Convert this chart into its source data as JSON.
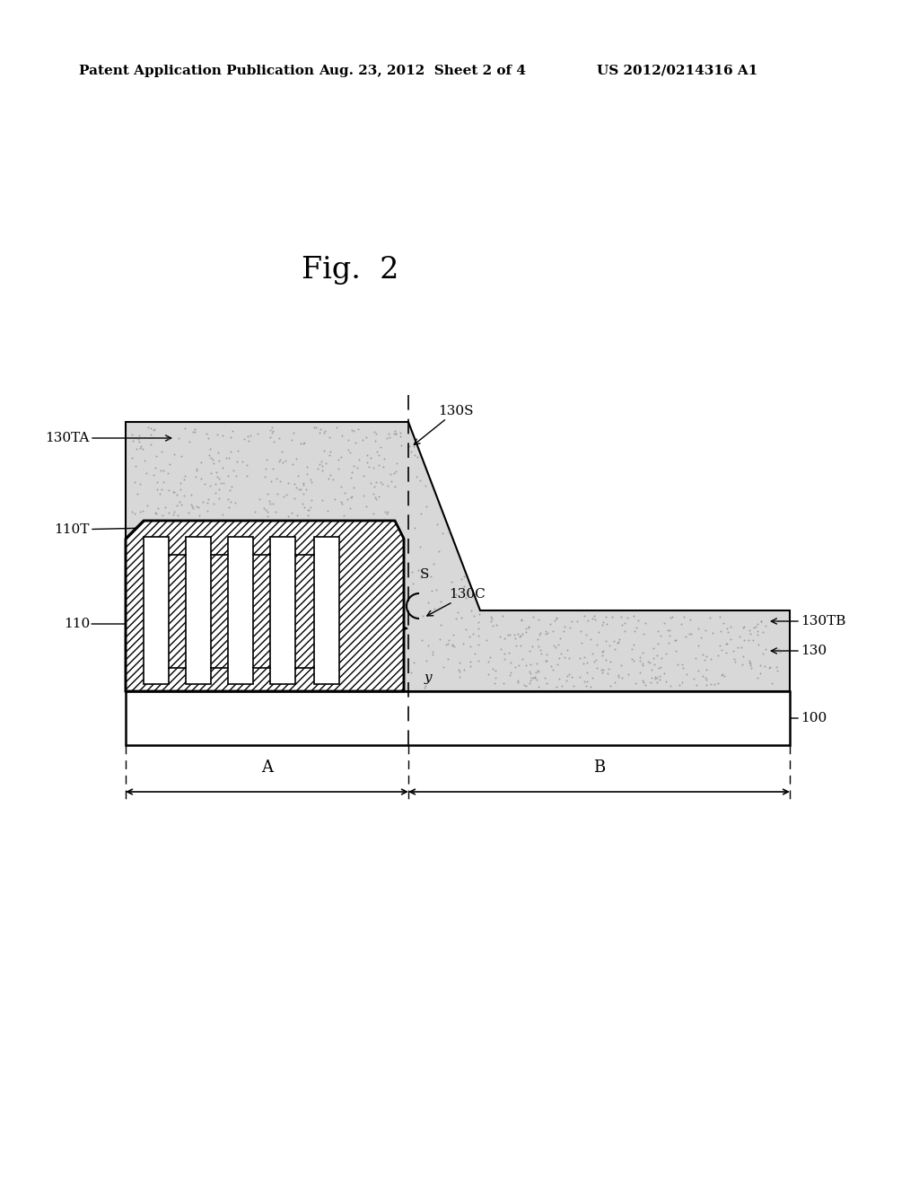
{
  "bg_color": "#ffffff",
  "header_left": "Patent Application Publication",
  "header_mid": "Aug. 23, 2012  Sheet 2 of 4",
  "header_right": "US 2012/0214316 A1",
  "fig_title": "Fig.  2"
}
